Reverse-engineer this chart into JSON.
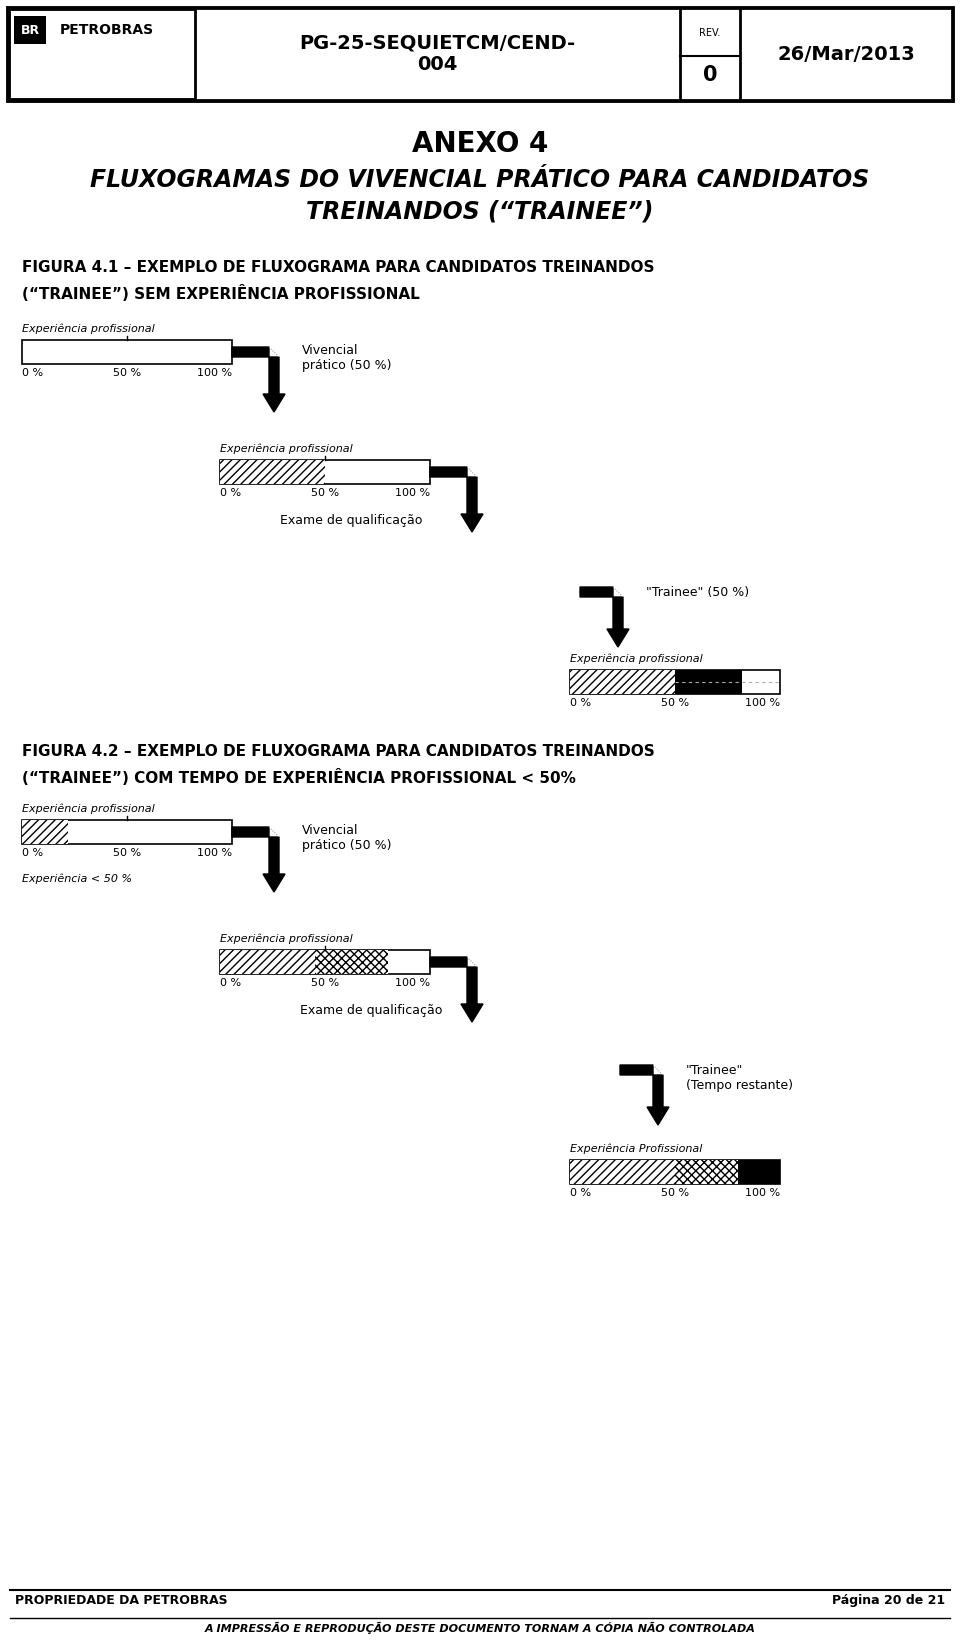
{
  "bg_color": "#ffffff",
  "annex_title": "ANEXO 4",
  "main_title_line1": "FLUXOGRAMAS DO VIVENCIAL PRÁTICO PARA CANDIDATOS",
  "main_title_line2": "TREINANDOS (“TRAINEE”)",
  "fig1_title_line1": "FIGURA 4.1 – EXEMPLO DE FLUXOGRAMA PARA CANDIDATOS TREINANDOS",
  "fig1_title_line2": "(“TRAINEE”) SEM EXPERIÊNCIA PROFISSIONAL",
  "fig2_title_line1": "FIGURA 4.2 – EXEMPLO DE FLUXOGRAMA PARA CANDIDATOS TREINANDOS",
  "fig2_title_line2": "(“TRAINEE”) COM TEMPO DE EXPERIÊNCIA PROFISSIONAL < 50%",
  "footer_left": "PROPRIEDADE DA PETROBRAS",
  "footer_page": "Página 20 de 21",
  "footer_bottom": "A IMPRESSÃO E REPRODUÇÃO DESTE DOCUMENTO TORNAM A CÓPIA NÃO CONTROLADA",
  "header_doc": "PG-25-SEQUIETCM/CEND-\n004",
  "header_rev_label": "REV.",
  "header_rev": "0",
  "header_date": "26/Mar/2013",
  "header_logo": "PETROBRAS"
}
